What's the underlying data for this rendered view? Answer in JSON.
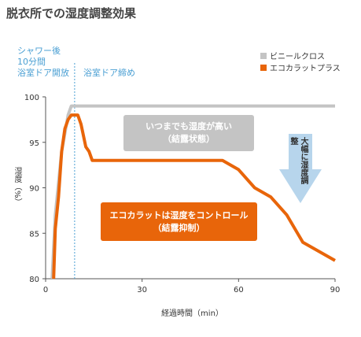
{
  "title": "脱衣所での湿度調整効果",
  "phases": {
    "shower_line1": "シャワー後",
    "shower_line2": "10分間",
    "shower_line3": "浴室ドア開放",
    "door_closed": "浴室ドア締め"
  },
  "callouts": {
    "gray_line1": "いつまでも湿度が高い",
    "gray_line2": "（結露状態）",
    "orange_line1": "エコカラットは湿度をコントロール",
    "orange_line2": "（結露抑制）",
    "arrow_text": "大幅に湿度調整"
  },
  "colors": {
    "vinyl": "#c4c4c4",
    "ecocarat": "#e8650a",
    "accent_blue": "#4a9fd3",
    "arrow": "#b7d5ec"
  },
  "chart_data": {
    "type": "line",
    "xlabel": "経過時間（min）",
    "ylabel": "湿度（%）",
    "xlim": [
      0,
      90
    ],
    "ylim": [
      80,
      100
    ],
    "xticks": [
      0,
      30,
      60,
      90
    ],
    "yticks": [
      80,
      85,
      90,
      95,
      100
    ],
    "grid": false,
    "legend": "top-right",
    "series": [
      {
        "name": "ビニールクロス",
        "points": [
          [
            2,
            80
          ],
          [
            3,
            87
          ],
          [
            5,
            94
          ],
          [
            7,
            98
          ],
          [
            8,
            99
          ],
          [
            90,
            99
          ]
        ]
      },
      {
        "name": "エコカラットプラス",
        "points": [
          [
            2.5,
            80
          ],
          [
            3,
            85.5
          ],
          [
            4,
            89
          ],
          [
            5,
            94
          ],
          [
            6,
            96.5
          ],
          [
            7,
            97.5
          ],
          [
            8,
            98
          ],
          [
            10,
            98
          ],
          [
            11,
            97
          ],
          [
            12.5,
            94.5
          ],
          [
            13.5,
            94
          ],
          [
            14.5,
            93
          ],
          [
            55,
            93
          ],
          [
            60,
            92
          ],
          [
            65,
            90
          ],
          [
            70,
            89
          ],
          [
            75,
            87
          ],
          [
            80,
            84
          ],
          [
            90,
            82
          ]
        ]
      }
    ]
  }
}
